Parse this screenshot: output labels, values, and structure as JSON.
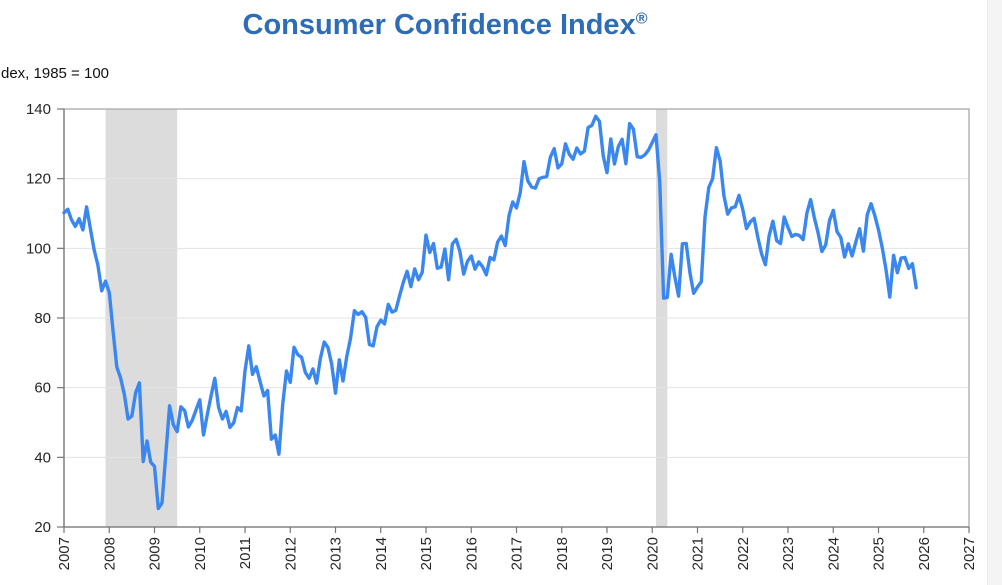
{
  "header": {
    "title": "Consumer Confidence Index",
    "registered_mark": "®"
  },
  "colors": {
    "title": "#2e6db6",
    "line": "#3b87f0",
    "recession_band": "#dcdcdc",
    "gridline": "#e3e3e3",
    "plot_border": "#a3a3a3",
    "axis": "#767676",
    "tick_label": "#262626",
    "scrollbar_track": "#f4f4f4"
  },
  "chart_data": {
    "type": "line",
    "title": "Consumer Confidence Index®",
    "ylabel": "dex, 1985 = 100",
    "xlabel": "",
    "grid": "horizontal",
    "legend": "none",
    "y_axis": {
      "min": 20,
      "max": 140,
      "tick_interval": 20,
      "ticks": [
        20,
        40,
        60,
        80,
        100,
        120,
        140
      ]
    },
    "x_axis": {
      "min": 2007,
      "max": 2027,
      "ticks": [
        2007,
        2008,
        2009,
        2010,
        2011,
        2012,
        2013,
        2014,
        2015,
        2016,
        2017,
        2018,
        2019,
        2020,
        2021,
        2022,
        2023,
        2024,
        2025,
        2026,
        2027
      ],
      "tick_label_rotation": -90
    },
    "recession_bands": [
      {
        "from": 2007.917,
        "to": 2009.5
      },
      {
        "from": 2020.083,
        "to": 2020.333
      }
    ],
    "series": [
      {
        "name": "Consumer Confidence Index",
        "frequency": "monthly",
        "start_year": 2007,
        "start_month": 1,
        "values": [
          110.2,
          111.2,
          108.2,
          106.3,
          108.5,
          105.3,
          111.9,
          105.6,
          99.5,
          95.2,
          87.8,
          90.6,
          87.3,
          76.4,
          65.9,
          62.8,
          58.1,
          51.0,
          51.9,
          58.5,
          61.4,
          38.8,
          44.7,
          38.6,
          37.4,
          25.3,
          26.9,
          40.8,
          54.8,
          49.3,
          47.4,
          54.5,
          53.4,
          48.7,
          50.6,
          53.6,
          56.5,
          46.4,
          52.3,
          57.7,
          62.7,
          54.3,
          51.0,
          53.2,
          48.6,
          49.9,
          54.3,
          53.3,
          64.8,
          72.0,
          63.8,
          66.0,
          61.7,
          57.6,
          59.2,
          45.2,
          46.4,
          40.9,
          55.2,
          64.8,
          61.5,
          71.6,
          69.5,
          68.7,
          64.4,
          62.7,
          65.4,
          61.3,
          68.4,
          73.1,
          71.5,
          66.7,
          58.4,
          68.0,
          61.9,
          69.0,
          74.3,
          82.1,
          81.0,
          81.8,
          80.2,
          72.4,
          72.0,
          77.5,
          79.4,
          78.3,
          83.9,
          81.7,
          82.2,
          86.4,
          90.3,
          93.4,
          89.0,
          94.1,
          91.0,
          93.1,
          103.8,
          98.8,
          101.4,
          94.3,
          94.6,
          99.8,
          91.0,
          101.3,
          102.6,
          99.1,
          92.6,
          96.3,
          97.8,
          94.0,
          96.1,
          94.7,
          92.4,
          97.4,
          96.7,
          101.8,
          103.5,
          100.8,
          109.4,
          113.3,
          111.6,
          116.1,
          124.9,
          119.4,
          117.6,
          117.3,
          120.0,
          120.4,
          120.6,
          126.2,
          128.6,
          123.1,
          124.3,
          130.0,
          127.0,
          125.6,
          128.8,
          127.1,
          127.9,
          134.7,
          135.3,
          137.9,
          136.4,
          126.6,
          121.7,
          131.4,
          124.2,
          129.2,
          131.3,
          124.3,
          135.8,
          134.2,
          126.3,
          126.1,
          126.8,
          128.2,
          130.4,
          132.6,
          118.8,
          85.7,
          85.9,
          98.3,
          91.7,
          86.3,
          101.3,
          101.4,
          92.9,
          87.1,
          88.9,
          90.4,
          109.0,
          117.5,
          120.0,
          128.9,
          125.1,
          115.2,
          109.8,
          111.6,
          111.9,
          115.2,
          111.1,
          105.7,
          107.6,
          108.6,
          103.2,
          98.4,
          95.3,
          103.6,
          107.8,
          102.2,
          101.4,
          109.0,
          106.0,
          103.4,
          104.0,
          103.7,
          102.5,
          110.1,
          114.0,
          108.7,
          104.3,
          99.1,
          101.0,
          108.0,
          110.9,
          104.8,
          103.1,
          97.5,
          101.3,
          97.8,
          101.9,
          105.6,
          99.2,
          109.6,
          112.8,
          109.5,
          105.3,
          100.1,
          93.9,
          86.0,
          98.0,
          93.0,
          97.2,
          97.4,
          94.2,
          95.6,
          88.7
        ]
      }
    ]
  }
}
